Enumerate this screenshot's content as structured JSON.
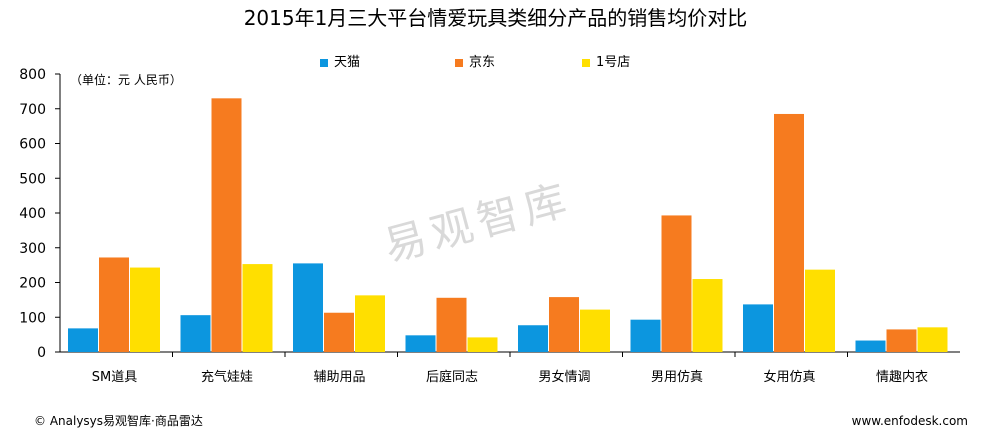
{
  "chart_data": {
    "type": "bar",
    "title": "2015年1月三大平台情爱玩具类细分产品的销售均价对比",
    "unit_label": "（单位：元 人民币）",
    "categories": [
      "SM道具",
      "充气娃娃",
      "辅助用品",
      "后庭同志",
      "男女情调",
      "男用仿真",
      "女用仿真",
      "情趣内衣"
    ],
    "series": [
      {
        "name": "天猫",
        "color": "#0c96df",
        "values": [
          68,
          106,
          255,
          48,
          77,
          93,
          137,
          33
        ]
      },
      {
        "name": "京东",
        "color": "#f67b1f",
        "values": [
          272,
          730,
          113,
          156,
          158,
          393,
          685,
          65
        ]
      },
      {
        "name": "1号店",
        "color": "#ffdf00",
        "values": [
          243,
          253,
          163,
          42,
          122,
          210,
          237,
          71
        ]
      }
    ],
    "yticks": [
      0,
      100,
      200,
      300,
      400,
      500,
      600,
      700,
      800
    ],
    "ylim": [
      0,
      800
    ],
    "grid": false,
    "legend_position": "top-center"
  },
  "watermark": "易观智库",
  "footer": {
    "left": "© Analysys易观智库·商品雷达",
    "right": "www.enfodesk.com"
  }
}
